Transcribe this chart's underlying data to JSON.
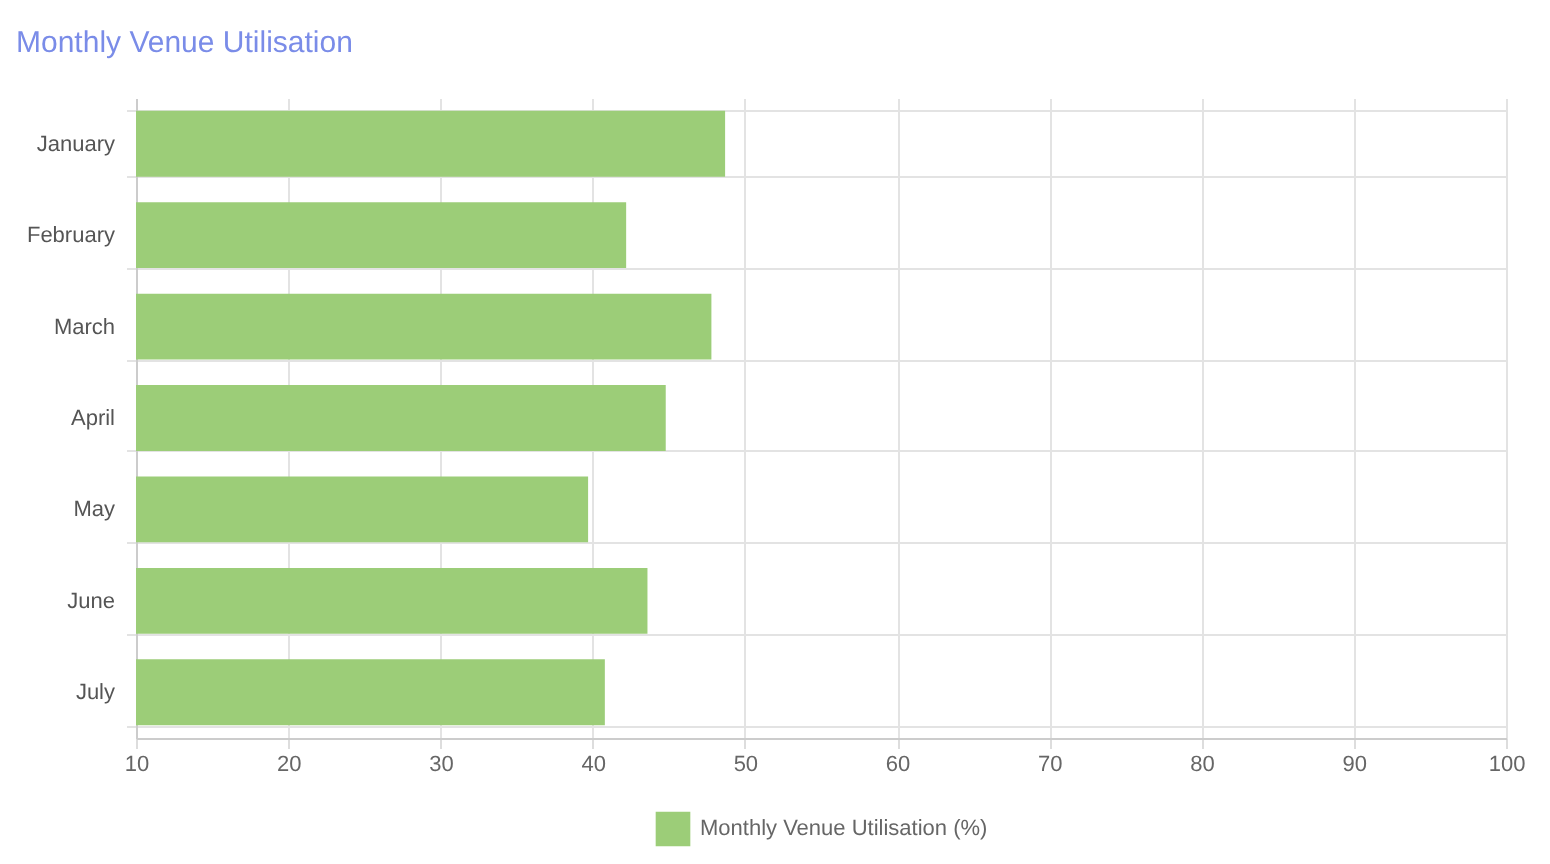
{
  "chart_data": {
    "type": "bar",
    "orientation": "horizontal",
    "title": "Monthly Venue Utilisation",
    "categories": [
      "January",
      "February",
      "March",
      "April",
      "May",
      "June",
      "July"
    ],
    "series": [
      {
        "name": "Monthly Venue Utilisation (%)",
        "color": "#9ccd78",
        "values": [
          48.7,
          42.2,
          47.8,
          44.8,
          39.7,
          43.6,
          40.8
        ]
      }
    ],
    "xlim": [
      10,
      100
    ],
    "xticks": [
      10,
      20,
      30,
      40,
      50,
      60,
      70,
      80,
      90,
      100
    ],
    "grid": true,
    "legend": "bottom"
  }
}
